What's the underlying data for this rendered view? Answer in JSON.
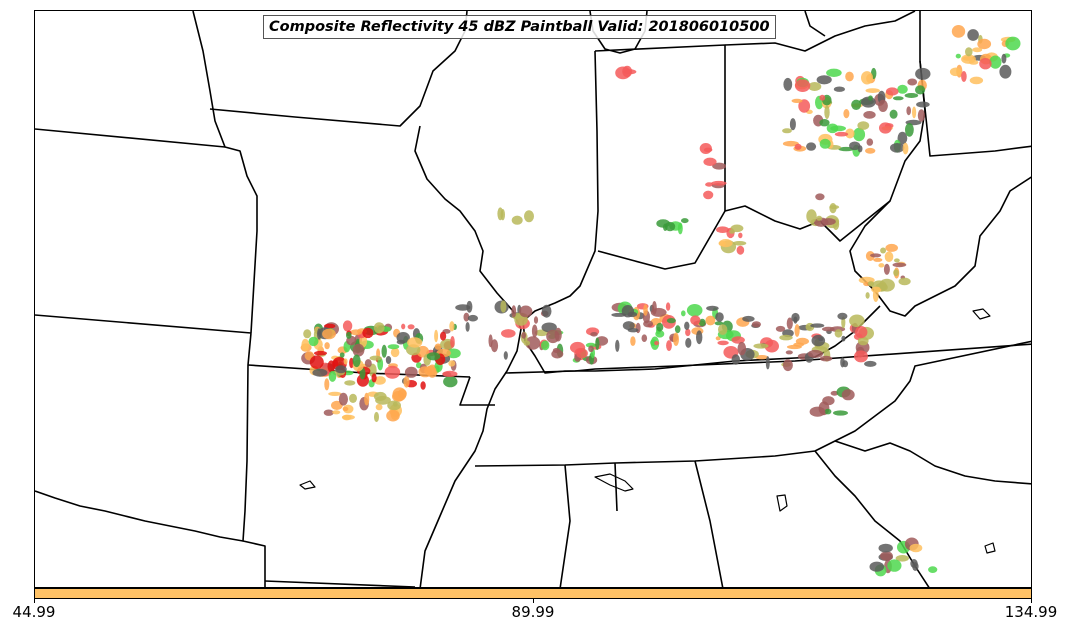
{
  "title": "Composite Reflectivity 45 dBZ Paintball Valid: 201806010500",
  "colorbar": {
    "color": "#ffc266",
    "ticks": [
      "44.99",
      "89.99",
      "134.99"
    ]
  },
  "palette": {
    "orange": "#ffa64d",
    "lightorange": "#ffbf5e",
    "red": "#f55a5a",
    "brightred": "#e01010",
    "green": "#4ed84e",
    "darkgreen": "#3a9a3a",
    "olive": "#b9b95a",
    "brown": "#a05a5a",
    "gray": "#5a5a5a",
    "tan": "#c89a5a"
  }
}
